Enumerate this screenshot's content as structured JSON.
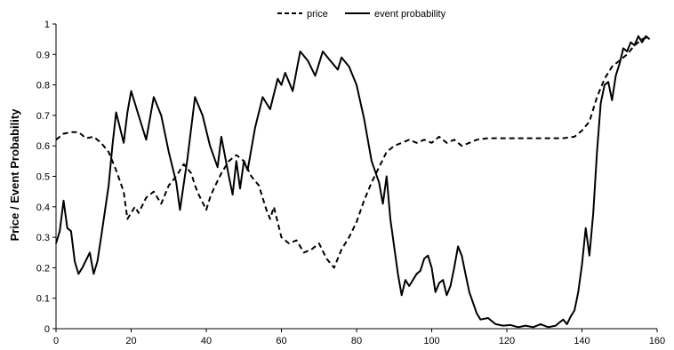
{
  "chart_data": {
    "type": "line",
    "title": "",
    "xlabel": "",
    "ylabel": "Price / Event Probability",
    "xlim": [
      0,
      160
    ],
    "ylim": [
      0,
      1
    ],
    "x_ticks": [
      "0",
      "20",
      "40",
      "60",
      "80",
      "100",
      "120",
      "140",
      "160"
    ],
    "y_ticks": [
      "0",
      "0.1",
      "0.2",
      "0.3",
      "0.4",
      "0.5",
      "0.6",
      "0.7",
      "0.8",
      "0.9",
      "1"
    ],
    "grid": false,
    "legend_position": "top",
    "series": [
      {
        "name": "price",
        "style": "dashed",
        "color": "#000000",
        "points": [
          [
            0,
            0.62
          ],
          [
            2,
            0.64
          ],
          [
            4,
            0.645
          ],
          [
            6,
            0.645
          ],
          [
            8,
            0.625
          ],
          [
            10,
            0.63
          ],
          [
            12,
            0.61
          ],
          [
            14,
            0.58
          ],
          [
            16,
            0.52
          ],
          [
            18,
            0.45
          ],
          [
            19,
            0.36
          ],
          [
            21,
            0.4
          ],
          [
            22,
            0.38
          ],
          [
            24,
            0.43
          ],
          [
            26,
            0.45
          ],
          [
            28,
            0.41
          ],
          [
            30,
            0.47
          ],
          [
            32,
            0.5
          ],
          [
            34,
            0.54
          ],
          [
            36,
            0.51
          ],
          [
            37,
            0.47
          ],
          [
            38,
            0.44
          ],
          [
            40,
            0.39
          ],
          [
            41,
            0.43
          ],
          [
            42,
            0.46
          ],
          [
            44,
            0.51
          ],
          [
            46,
            0.55
          ],
          [
            48,
            0.57
          ],
          [
            50,
            0.55
          ],
          [
            52,
            0.5
          ],
          [
            54,
            0.47
          ],
          [
            56,
            0.39
          ],
          [
            57,
            0.36
          ],
          [
            58,
            0.4
          ],
          [
            60,
            0.3
          ],
          [
            62,
            0.28
          ],
          [
            64,
            0.29
          ],
          [
            66,
            0.25
          ],
          [
            68,
            0.26
          ],
          [
            70,
            0.28
          ],
          [
            72,
            0.23
          ],
          [
            74,
            0.2
          ],
          [
            76,
            0.26
          ],
          [
            78,
            0.3
          ],
          [
            80,
            0.35
          ],
          [
            82,
            0.42
          ],
          [
            84,
            0.48
          ],
          [
            86,
            0.53
          ],
          [
            88,
            0.58
          ],
          [
            90,
            0.6
          ],
          [
            92,
            0.61
          ],
          [
            94,
            0.62
          ],
          [
            96,
            0.61
          ],
          [
            98,
            0.62
          ],
          [
            100,
            0.61
          ],
          [
            102,
            0.63
          ],
          [
            104,
            0.61
          ],
          [
            106,
            0.62
          ],
          [
            108,
            0.6
          ],
          [
            110,
            0.61
          ],
          [
            112,
            0.62
          ],
          [
            115,
            0.625
          ],
          [
            120,
            0.625
          ],
          [
            125,
            0.625
          ],
          [
            130,
            0.625
          ],
          [
            135,
            0.625
          ],
          [
            138,
            0.63
          ],
          [
            140,
            0.65
          ],
          [
            142,
            0.68
          ],
          [
            144,
            0.76
          ],
          [
            146,
            0.82
          ],
          [
            148,
            0.86
          ],
          [
            150,
            0.88
          ],
          [
            152,
            0.9
          ],
          [
            154,
            0.93
          ],
          [
            156,
            0.95
          ],
          [
            158,
            0.96
          ]
        ]
      },
      {
        "name": "event probability",
        "style": "solid",
        "color": "#000000",
        "points": [
          [
            0,
            0.28
          ],
          [
            1,
            0.32
          ],
          [
            2,
            0.42
          ],
          [
            3,
            0.33
          ],
          [
            4,
            0.32
          ],
          [
            5,
            0.22
          ],
          [
            6,
            0.18
          ],
          [
            7,
            0.2
          ],
          [
            9,
            0.25
          ],
          [
            10,
            0.18
          ],
          [
            11,
            0.22
          ],
          [
            12,
            0.3
          ],
          [
            14,
            0.47
          ],
          [
            15,
            0.6
          ],
          [
            16,
            0.71
          ],
          [
            18,
            0.61
          ],
          [
            19,
            0.71
          ],
          [
            20,
            0.78
          ],
          [
            22,
            0.7
          ],
          [
            24,
            0.62
          ],
          [
            26,
            0.76
          ],
          [
            28,
            0.7
          ],
          [
            30,
            0.58
          ],
          [
            32,
            0.48
          ],
          [
            33,
            0.39
          ],
          [
            35,
            0.56
          ],
          [
            37,
            0.76
          ],
          [
            39,
            0.7
          ],
          [
            41,
            0.6
          ],
          [
            43,
            0.53
          ],
          [
            44,
            0.63
          ],
          [
            46,
            0.5
          ],
          [
            47,
            0.44
          ],
          [
            48,
            0.55
          ],
          [
            49,
            0.46
          ],
          [
            50,
            0.55
          ],
          [
            51,
            0.52
          ],
          [
            53,
            0.66
          ],
          [
            55,
            0.76
          ],
          [
            57,
            0.72
          ],
          [
            59,
            0.82
          ],
          [
            60,
            0.8
          ],
          [
            61,
            0.84
          ],
          [
            63,
            0.78
          ],
          [
            65,
            0.91
          ],
          [
            67,
            0.88
          ],
          [
            69,
            0.83
          ],
          [
            71,
            0.91
          ],
          [
            73,
            0.88
          ],
          [
            75,
            0.85
          ],
          [
            76,
            0.89
          ],
          [
            78,
            0.86
          ],
          [
            80,
            0.8
          ],
          [
            82,
            0.69
          ],
          [
            84,
            0.55
          ],
          [
            86,
            0.48
          ],
          [
            87,
            0.41
          ],
          [
            88,
            0.5
          ],
          [
            89,
            0.36
          ],
          [
            91,
            0.18
          ],
          [
            92,
            0.11
          ],
          [
            93,
            0.16
          ],
          [
            94,
            0.14
          ],
          [
            96,
            0.18
          ],
          [
            97,
            0.19
          ],
          [
            98,
            0.23
          ],
          [
            99,
            0.24
          ],
          [
            100,
            0.2
          ],
          [
            101,
            0.12
          ],
          [
            102,
            0.15
          ],
          [
            103,
            0.16
          ],
          [
            104,
            0.11
          ],
          [
            105,
            0.14
          ],
          [
            106,
            0.2
          ],
          [
            107,
            0.27
          ],
          [
            108,
            0.24
          ],
          [
            109,
            0.18
          ],
          [
            110,
            0.12
          ],
          [
            112,
            0.05
          ],
          [
            113,
            0.03
          ],
          [
            115,
            0.035
          ],
          [
            117,
            0.015
          ],
          [
            119,
            0.01
          ],
          [
            121,
            0.012
          ],
          [
            123,
            0.005
          ],
          [
            125,
            0.01
          ],
          [
            127,
            0.005
          ],
          [
            129,
            0.015
          ],
          [
            131,
            0.005
          ],
          [
            133,
            0.01
          ],
          [
            134,
            0.02
          ],
          [
            135,
            0.03
          ],
          [
            136,
            0.015
          ],
          [
            137,
            0.04
          ],
          [
            138,
            0.06
          ],
          [
            139,
            0.12
          ],
          [
            140,
            0.21
          ],
          [
            141,
            0.33
          ],
          [
            142,
            0.24
          ],
          [
            143,
            0.38
          ],
          [
            144,
            0.58
          ],
          [
            145,
            0.74
          ],
          [
            146,
            0.8
          ],
          [
            147,
            0.81
          ],
          [
            148,
            0.75
          ],
          [
            149,
            0.83
          ],
          [
            150,
            0.87
          ],
          [
            151,
            0.92
          ],
          [
            152,
            0.91
          ],
          [
            153,
            0.94
          ],
          [
            154,
            0.93
          ],
          [
            155,
            0.96
          ],
          [
            156,
            0.94
          ],
          [
            157,
            0.96
          ],
          [
            158,
            0.95
          ]
        ]
      }
    ]
  }
}
